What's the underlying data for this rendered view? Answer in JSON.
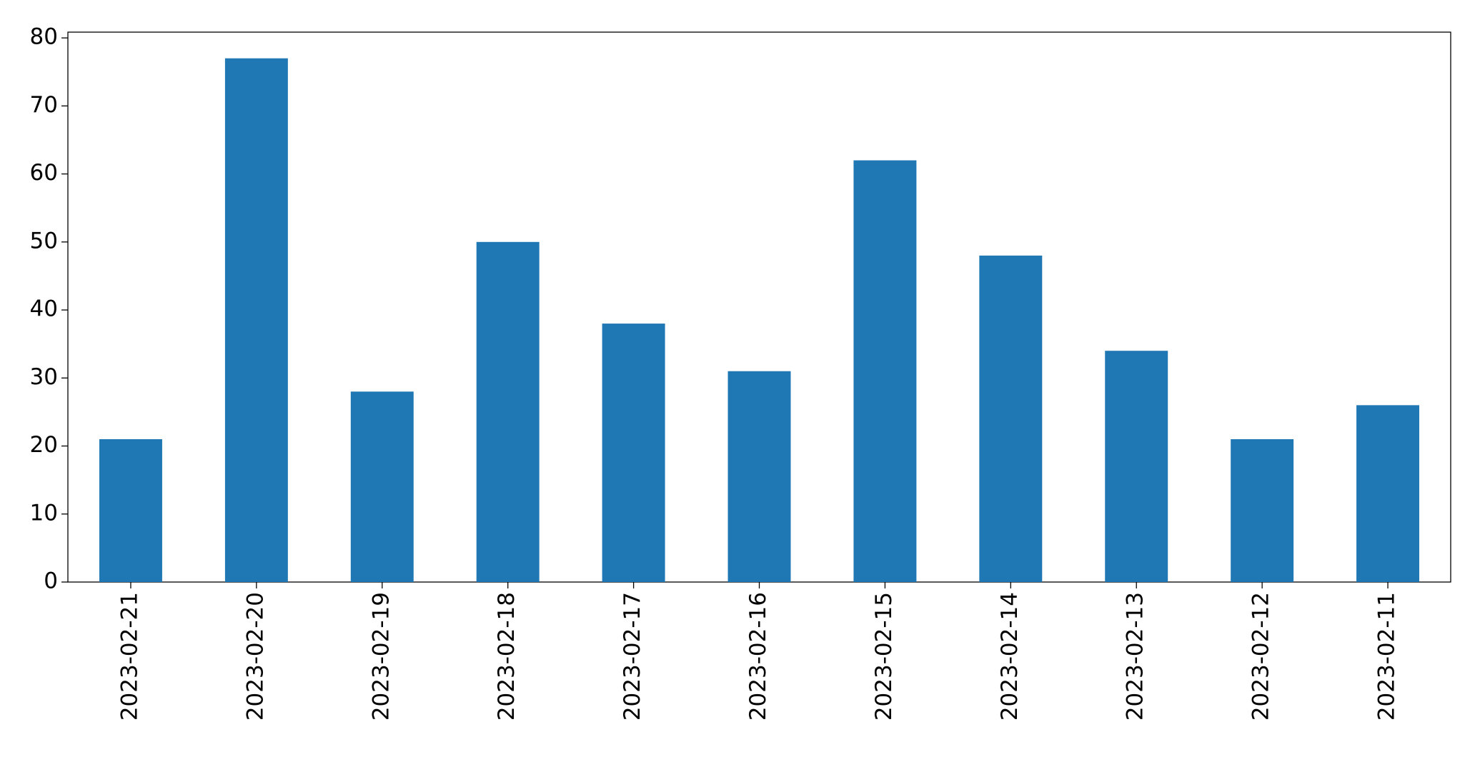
{
  "chart_data": {
    "type": "bar",
    "categories": [
      "2023-02-21",
      "2023-02-20",
      "2023-02-19",
      "2023-02-18",
      "2023-02-17",
      "2023-02-16",
      "2023-02-15",
      "2023-02-14",
      "2023-02-13",
      "2023-02-12",
      "2023-02-11"
    ],
    "values": [
      21,
      77,
      28,
      50,
      38,
      31,
      62,
      48,
      34,
      21,
      26
    ],
    "color": "#1f77b4",
    "ylim": [
      0,
      80.85
    ],
    "yticks": [
      0,
      10,
      20,
      30,
      40,
      50,
      60,
      70,
      80
    ],
    "grid": false
  }
}
